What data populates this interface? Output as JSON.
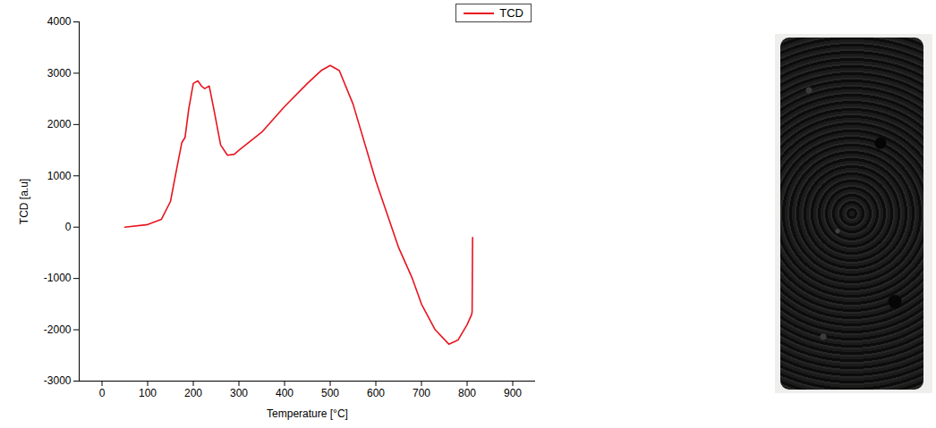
{
  "chart_data": {
    "type": "line",
    "x_label": "Temperature [°C]",
    "y_label": "TCD [a.u]",
    "xlim": [
      -50,
      950
    ],
    "xticks": [
      0,
      100,
      200,
      300,
      400,
      500,
      600,
      700,
      800,
      900
    ],
    "ylim": [
      -3000,
      4000
    ],
    "yticks": [
      -3000,
      -2000,
      -1000,
      0,
      1000,
      2000,
      3000,
      4000
    ],
    "legend": "upper right",
    "grid": false,
    "x": [
      50,
      100,
      130,
      150,
      165,
      175,
      182,
      190,
      200,
      210,
      218,
      225,
      235,
      245,
      260,
      275,
      290,
      300,
      350,
      400,
      450,
      480,
      500,
      520,
      550,
      600,
      650,
      680,
      700,
      730,
      760,
      780,
      800,
      810,
      811,
      812
    ],
    "series": [
      {
        "name": "TCD",
        "color": "#e8141e",
        "values": [
          0,
          50,
          150,
          500,
          1200,
          1650,
          1750,
          2300,
          2800,
          2850,
          2750,
          2700,
          2750,
          2300,
          1600,
          1400,
          1420,
          1500,
          1850,
          2350,
          2800,
          3050,
          3150,
          3050,
          2400,
          900,
          -400,
          -1000,
          -1500,
          -2000,
          -2280,
          -2200,
          -1900,
          -1700,
          -1650,
          -200
        ]
      }
    ]
  }
}
